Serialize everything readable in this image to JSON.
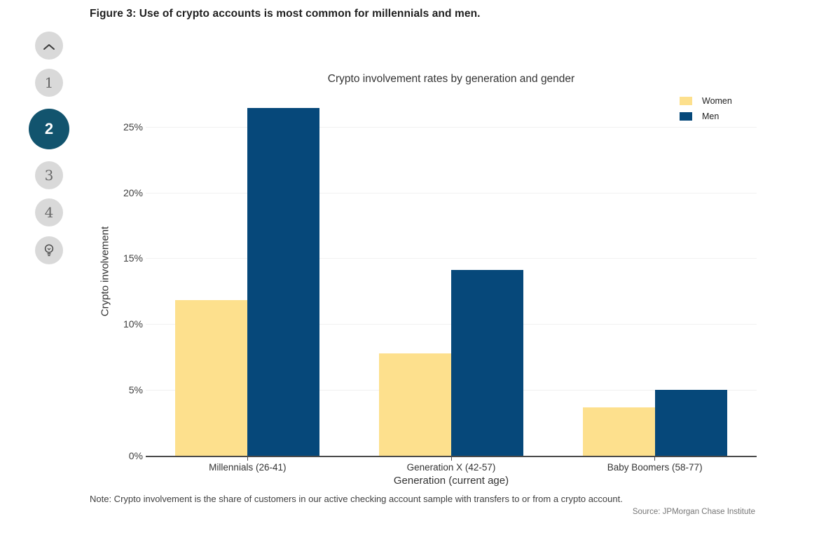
{
  "figure_title": "Figure 3: Use of crypto accounts is most common for millennials and men.",
  "sidebar": {
    "up_icon": "chevron-up",
    "tips_icon": "lightbulb",
    "steps": [
      "1",
      "2",
      "3",
      "4"
    ],
    "active_step": "2",
    "active_color": "#12546e",
    "inactive_color": "#d9d9d9"
  },
  "chart_data": {
    "type": "bar",
    "title": "Crypto involvement rates by generation and gender",
    "categories": [
      "Millennials (26-41)",
      "Generation X (42-57)",
      "Baby Boomers (58-77)"
    ],
    "series": [
      {
        "name": "Women",
        "color": "#fde08d",
        "values": [
          11.8,
          7.8,
          3.7
        ]
      },
      {
        "name": "Men",
        "color": "#06487a",
        "values": [
          26.4,
          14.1,
          5.0
        ]
      }
    ],
    "xlabel": "Generation (current age)",
    "ylabel": "Crypto involvement",
    "ytick_labels": [
      "0%",
      "5%",
      "10%",
      "15%",
      "20%",
      "25%"
    ],
    "ylim": [
      0,
      27.7
    ],
    "grid": true,
    "legend_position": "top-right"
  },
  "note": "Note: Crypto involvement is the share of customers in our active checking account sample with transfers to or from a crypto account.",
  "source": "Source: JPMorgan Chase Institute"
}
